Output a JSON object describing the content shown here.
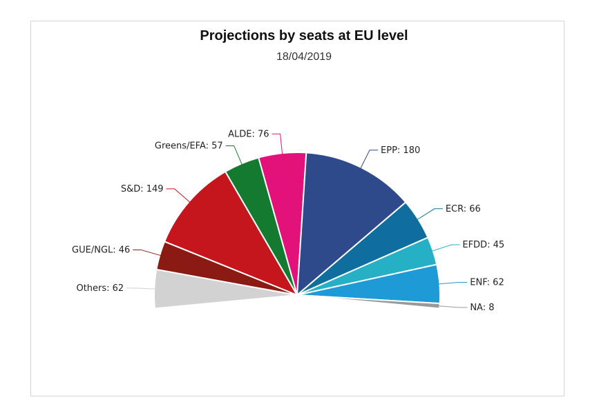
{
  "chart_data": {
    "type": "pie",
    "variant": "semicircle",
    "title": "Projections by seats at EU level",
    "subtitle": "18/04/2019",
    "legend": "none",
    "slices": [
      {
        "name": "Others",
        "value": 62,
        "color": "#d2d2d2"
      },
      {
        "name": "GUE/NGL",
        "value": 46,
        "color": "#8b1a12"
      },
      {
        "name": "S&D",
        "value": 149,
        "color": "#c4161c"
      },
      {
        "name": "Greens/EFA",
        "value": 57,
        "color": "#147a30"
      },
      {
        "name": "ALDE",
        "value": 76,
        "color": "#e2127a"
      },
      {
        "name": "EPP",
        "value": 180,
        "color": "#2f4a8b"
      },
      {
        "name": "ECR",
        "value": 66,
        "color": "#0f6e9e"
      },
      {
        "name": "EFDD",
        "value": 45,
        "color": "#26b0c6"
      },
      {
        "name": "ENF",
        "value": 62,
        "color": "#1e9bd7"
      },
      {
        "name": "NA",
        "value": 8,
        "color": "#9a9a9a"
      }
    ]
  }
}
